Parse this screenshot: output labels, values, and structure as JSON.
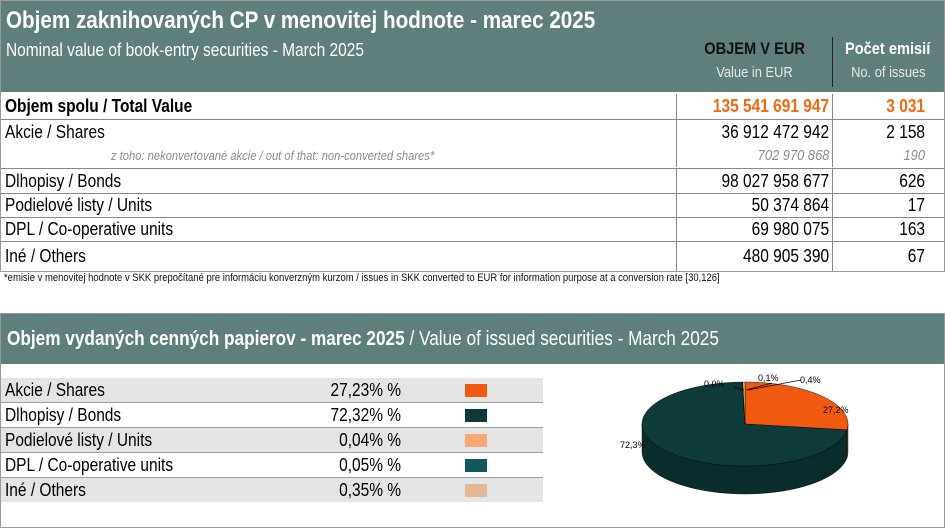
{
  "table": {
    "title": "Objem zaknihovaných CP v menovitej hodnote -  marec 2025",
    "subtitle": "Nominal value of book-entry securities -  March 2025",
    "col_volume_header": "OBJEM V EUR",
    "col_volume_sub": "Value in EUR",
    "col_count_header": "Počet emisií",
    "col_count_sub": "No. of issues",
    "total": {
      "label": "Objem spolu / Total Value",
      "value": "135 541 691 947",
      "count": "3 031"
    },
    "rows": [
      {
        "label": "Akcie / Shares",
        "value": "36 912 472 942",
        "count": "2 158"
      },
      {
        "label": "z toho: nekonvertované akcie / out of that: non-converted shares*",
        "value": "702 970 868",
        "count": "190"
      },
      {
        "label": "Dlhopisy / Bonds",
        "value": "98 027 958 677",
        "count": "626"
      },
      {
        "label": "Podielové listy / Units",
        "value": "50 374 864",
        "count": "17"
      },
      {
        "label": "DPL / Co-operative units",
        "value": "69 980 075",
        "count": "163"
      },
      {
        "label": "Iné / Others",
        "value": "480 905 390",
        "count": "67"
      }
    ],
    "footnote": "*emisie v menovitej hodnote v SKK prepočítané pre informáciu konverzným kurzom / issues in SKK converted to EUR for information purpose at a conversion rate [30,126]",
    "colors": {
      "header_bg": "#5f7f7c",
      "total_text": "#f26a10"
    }
  },
  "share": {
    "title_bold": "Objem vydaných cenných papierov - marec 2025",
    "title_rest": " / Value of issued securities - March 2025",
    "rows": [
      {
        "label": "Akcie / Shares",
        "value": "27,23% %",
        "color": "#f05a10"
      },
      {
        "label": "Dlhopisy / Bonds",
        "value": "72,32% %",
        "color": "#0e3a3a"
      },
      {
        "label": "Podielové listy / Units",
        "value": "0,04% %",
        "color": "#f8a875"
      },
      {
        "label": "DPL / Co-operative units",
        "value": "0,05% %",
        "color": "#13585f"
      },
      {
        "label": "Iné / Others",
        "value": "0,35% %",
        "color": "#e2b892"
      }
    ]
  },
  "chart_data": {
    "type": "pie",
    "title": "",
    "categories": [
      "Akcie / Shares",
      "Dlhopisy / Bonds",
      "Podielové listy / Units",
      "DPL / Co-operative units",
      "Iné / Others"
    ],
    "values": [
      27.23,
      72.32,
      0.04,
      0.05,
      0.35
    ],
    "data_labels": [
      "27,2%",
      "72,3%",
      "0,0%",
      "0,1%",
      "0,4%"
    ],
    "colors": [
      "#f05a10",
      "#0e3a3a",
      "#f8a875",
      "#13585f",
      "#e2b892"
    ],
    "style": "3d-pie",
    "legend": "none"
  }
}
